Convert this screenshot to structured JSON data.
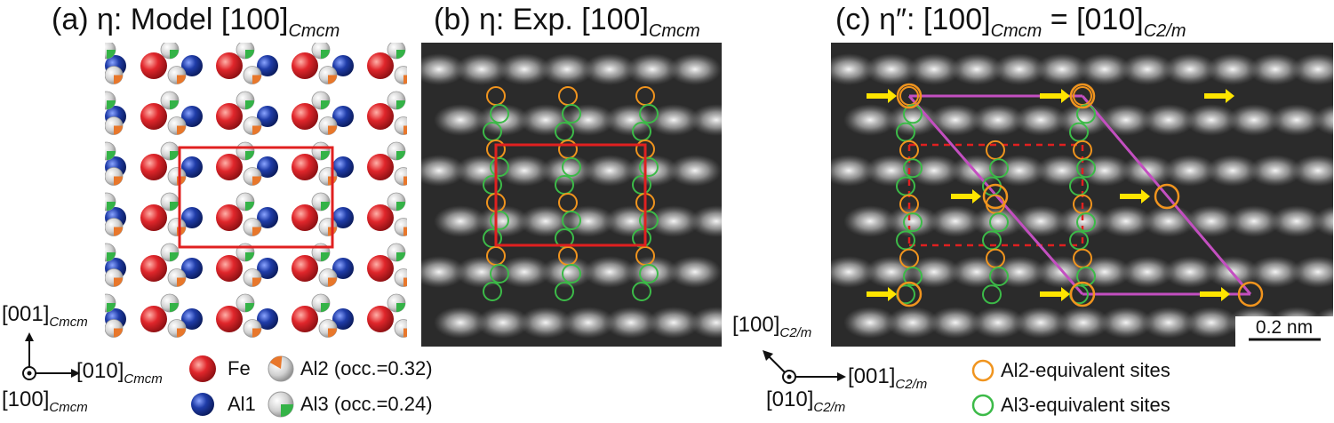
{
  "panel_a": {
    "title_prefix": "(a) η: Model [100]",
    "title_sub": "Cmcm",
    "axis_vertical": "[001]",
    "axis_vertical_sub": "Cmcm",
    "axis_horizontal": "[010]",
    "axis_horizontal_sub": "Cmcm",
    "axis_out": "[100]",
    "axis_out_sub": "Cmcm",
    "legend": {
      "fe": "Fe",
      "al1": "Al1",
      "al2": "Al2 (occ.=0.32)",
      "al3": "Al3 (occ.=0.24)"
    },
    "colors": {
      "fe": "#d9242b",
      "al1": "#1d3aa3",
      "al2": "#e8772b",
      "al3": "#34b347",
      "cell": "#e02020"
    }
  },
  "panel_b": {
    "title_prefix": "(b) η: Exp. [100]",
    "title_sub": "Cmcm"
  },
  "panel_c": {
    "title_prefix": "(c) η″: [100]",
    "title_sub1": "Cmcm",
    "title_mid": " = [010]",
    "title_sub2": "C2/m",
    "scale_bar": "0.2 nm",
    "axis_up": "[100]",
    "axis_up_sub": "C2/m",
    "axis_right": "[001]",
    "axis_right_sub": "C2/m",
    "axis_out": "[010]",
    "axis_out_sub": "C2/m",
    "legend": {
      "al2_sites": "Al2-equivalent sites",
      "al3_sites": "Al3-equivalent sites"
    },
    "colors": {
      "al2_sites": "#f0941e",
      "al3_sites": "#3cba48",
      "monoclinic": "#c34fc0",
      "arrows": "#ffe500"
    }
  }
}
